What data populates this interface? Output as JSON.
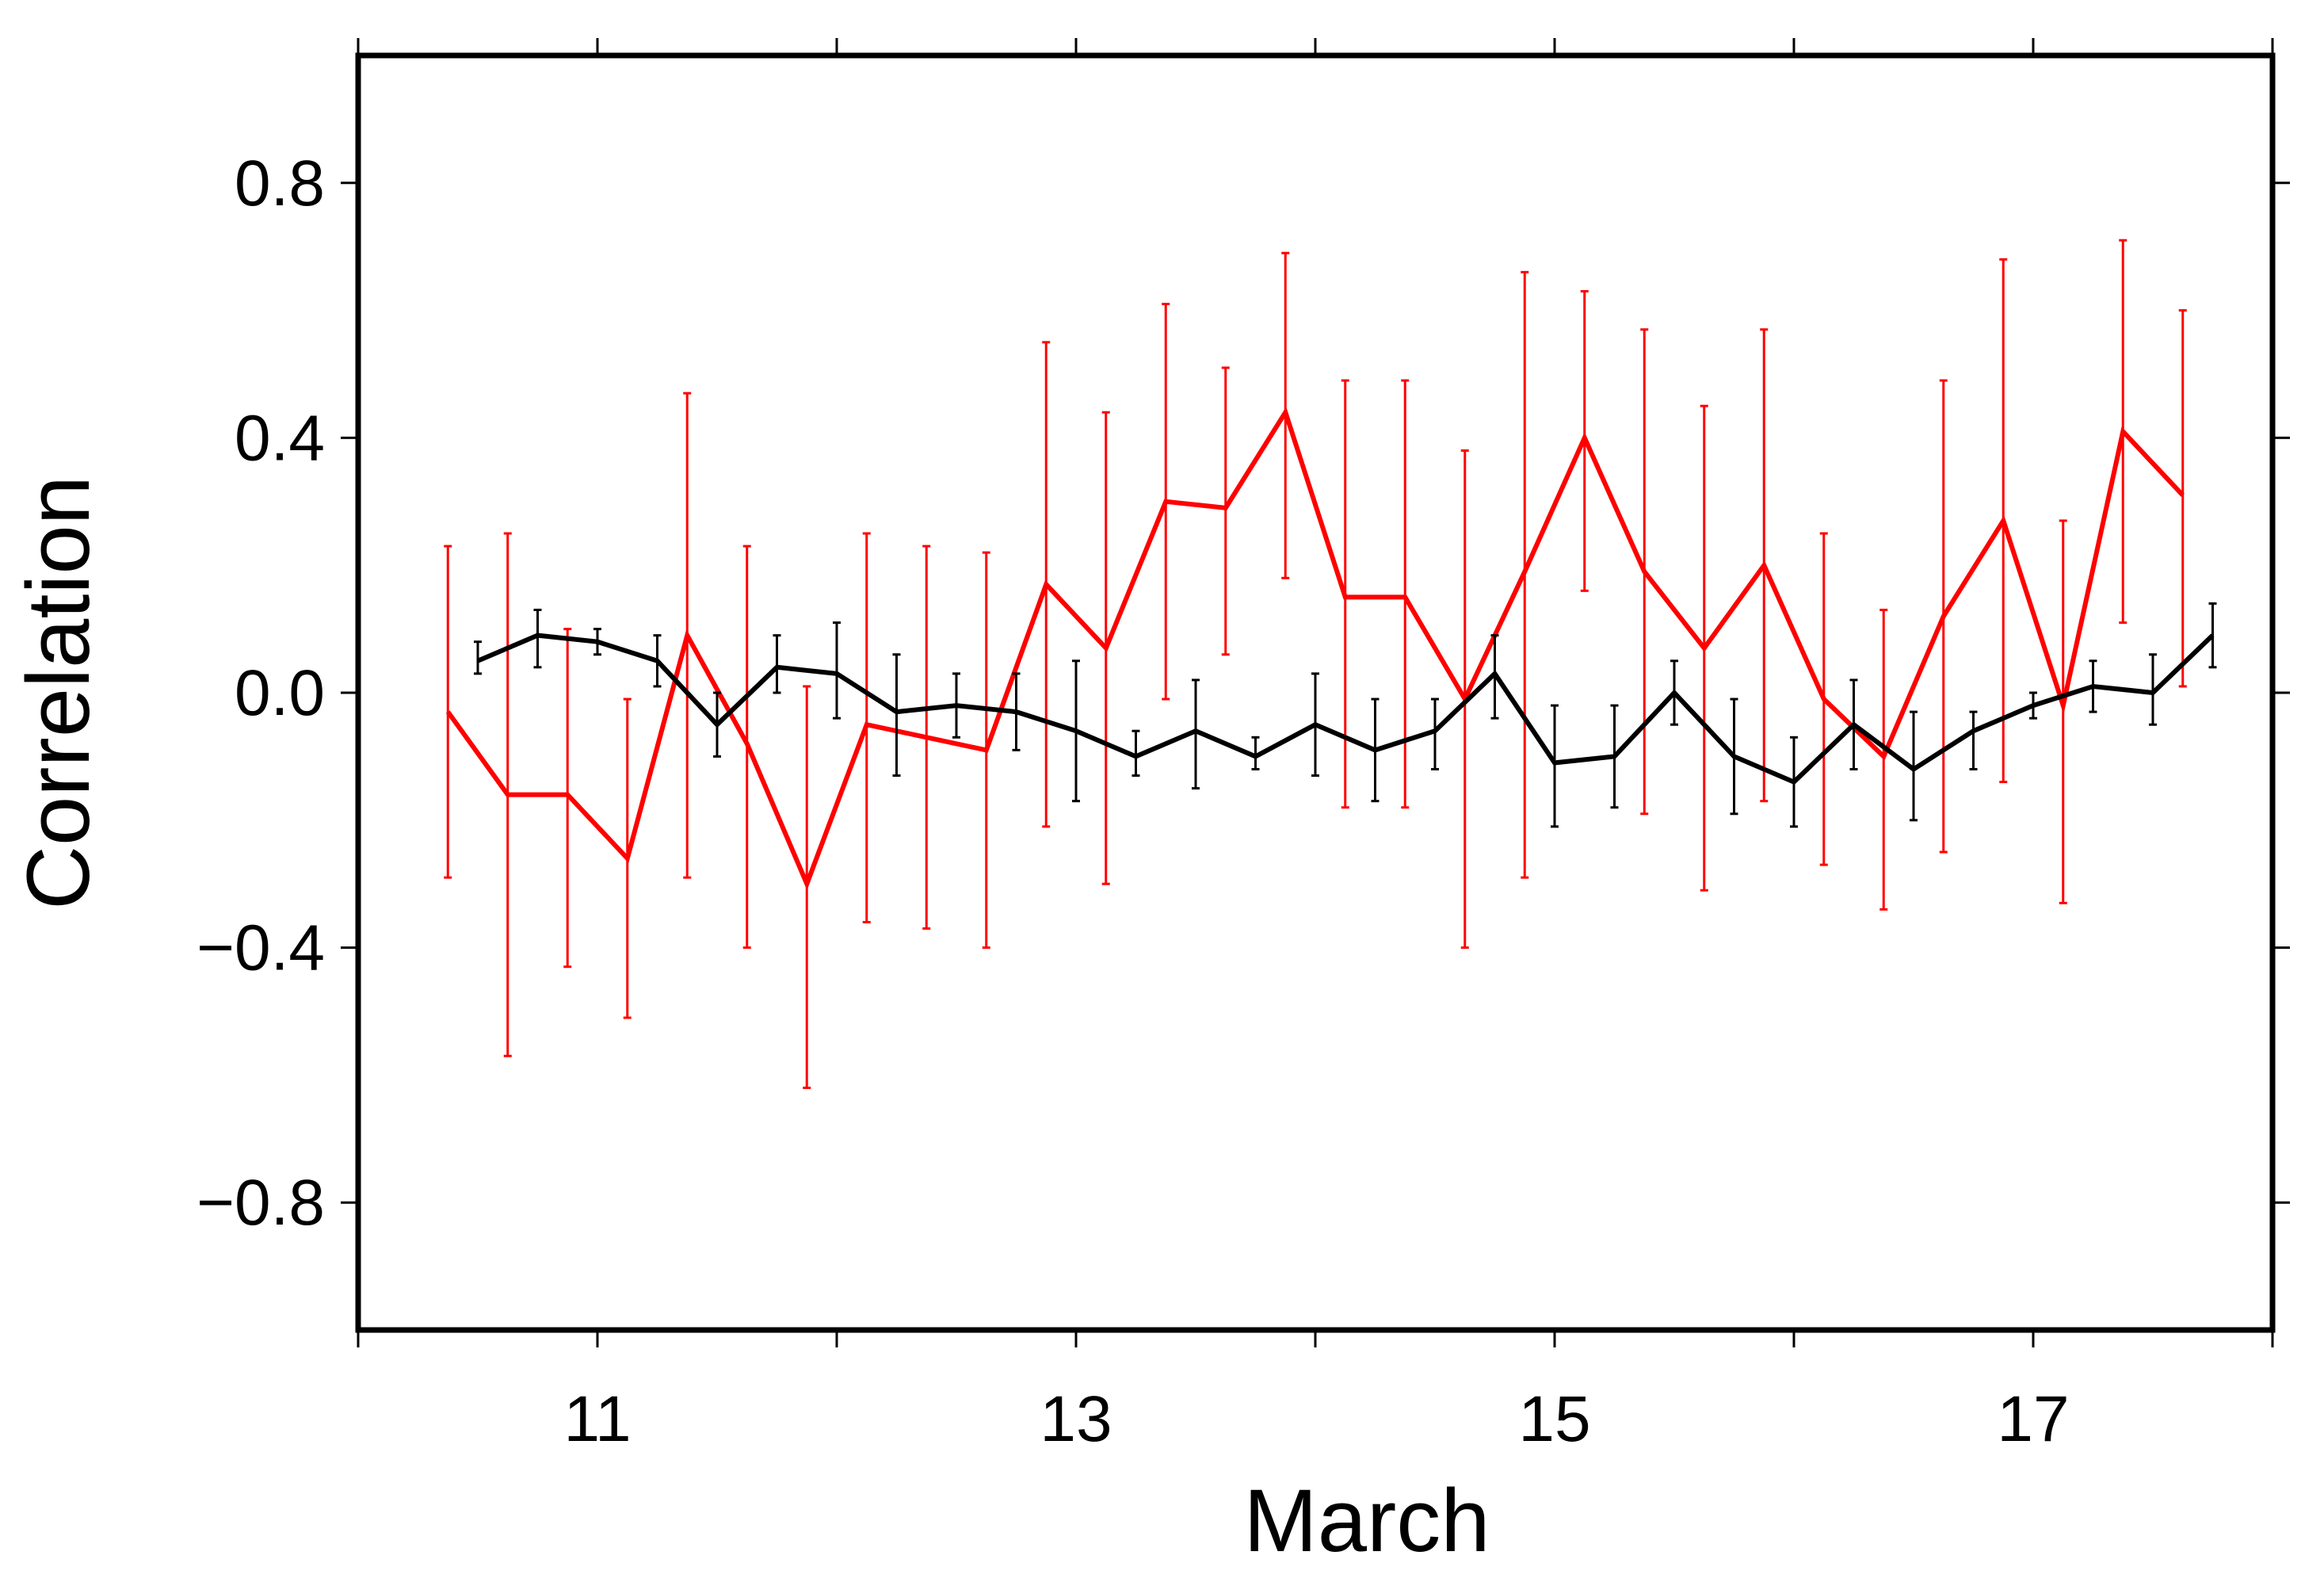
{
  "chart_data": {
    "type": "line",
    "title": "",
    "xlabel": "March",
    "ylabel": "Correlation",
    "xlim": [
      10,
      18
    ],
    "ylim": [
      -1.0,
      1.0
    ],
    "x_ticks": [
      11,
      13,
      15,
      17
    ],
    "x_tick_labels": [
      "11",
      "13",
      "15",
      "17"
    ],
    "y_ticks": [
      0.8,
      0.4,
      0.0,
      -0.4,
      -0.8
    ],
    "y_tick_labels": [
      "0.8",
      "0.4",
      "0.0",
      "−0.4",
      "−0.8"
    ],
    "grid": false,
    "legend": "none",
    "series": [
      {
        "color": "#ff0000",
        "x": [
          10.375,
          10.625,
          10.875,
          11.125,
          11.375,
          11.625,
          11.875,
          12.125,
          12.375,
          12.625,
          12.875,
          13.125,
          13.375,
          13.625,
          13.875,
          14.125,
          14.375,
          14.625,
          14.875,
          15.125,
          15.375,
          15.625,
          15.875,
          16.125,
          16.375,
          16.625,
          16.875,
          17.125,
          17.375,
          17.625
        ],
        "y": [
          -0.03,
          -0.16,
          -0.16,
          -0.26,
          0.09,
          -0.08,
          -0.3,
          -0.05,
          -0.07,
          -0.09,
          0.17,
          0.07,
          0.3,
          0.29,
          0.44,
          0.15,
          0.15,
          -0.01,
          0.19,
          0.4,
          0.19,
          0.07,
          0.2,
          -0.01,
          -0.1,
          0.12,
          0.27,
          -0.02,
          0.41,
          0.31
        ],
        "err_low": [
          -0.29,
          -0.57,
          -0.43,
          -0.51,
          -0.29,
          -0.4,
          -0.62,
          -0.36,
          -0.37,
          -0.4,
          -0.21,
          -0.3,
          -0.01,
          0.06,
          0.18,
          -0.18,
          -0.18,
          -0.4,
          -0.29,
          0.16,
          -0.19,
          -0.31,
          -0.17,
          -0.27,
          -0.34,
          -0.25,
          -0.14,
          -0.33,
          0.11,
          0.01
        ],
        "err_high": [
          0.23,
          0.25,
          0.1,
          -0.01,
          0.47,
          0.23,
          0.01,
          0.25,
          0.23,
          0.22,
          0.55,
          0.44,
          0.61,
          0.51,
          0.69,
          0.49,
          0.49,
          0.38,
          0.66,
          0.63,
          0.57,
          0.45,
          0.57,
          0.25,
          0.13,
          0.49,
          0.68,
          0.27,
          0.71,
          0.6
        ]
      },
      {
        "color": "#000000",
        "x": [
          10.5,
          10.75,
          11.0,
          11.25,
          11.5,
          11.75,
          12.0,
          12.25,
          12.5,
          12.75,
          13.0,
          13.25,
          13.5,
          13.75,
          14.0,
          14.25,
          14.5,
          14.75,
          15.0,
          15.25,
          15.5,
          15.75,
          16.0,
          16.25,
          16.5,
          16.75,
          17.0,
          17.25,
          17.5,
          17.75
        ],
        "y": [
          0.05,
          0.09,
          0.08,
          0.05,
          -0.05,
          0.04,
          0.03,
          -0.03,
          -0.02,
          -0.03,
          -0.06,
          -0.1,
          -0.06,
          -0.1,
          -0.05,
          -0.09,
          -0.06,
          0.03,
          -0.11,
          -0.1,
          -0.0,
          -0.1,
          -0.14,
          -0.05,
          -0.12,
          -0.06,
          -0.02,
          0.01,
          0.0,
          0.09
        ],
        "err_low": [
          0.03,
          0.04,
          0.06,
          0.01,
          -0.1,
          0.0,
          -0.04,
          -0.13,
          -0.07,
          -0.09,
          -0.17,
          -0.13,
          -0.15,
          -0.12,
          -0.13,
          -0.17,
          -0.12,
          -0.04,
          -0.21,
          -0.18,
          -0.05,
          -0.19,
          -0.21,
          -0.12,
          -0.2,
          -0.12,
          -0.04,
          -0.03,
          -0.05,
          0.04
        ],
        "err_high": [
          0.08,
          0.13,
          0.1,
          0.09,
          0.0,
          0.09,
          0.11,
          0.06,
          0.03,
          0.03,
          0.05,
          -0.06,
          0.02,
          -0.07,
          0.03,
          -0.01,
          -0.01,
          0.09,
          -0.02,
          -0.02,
          0.05,
          -0.01,
          -0.07,
          0.02,
          -0.03,
          -0.03,
          0.0,
          0.05,
          0.06,
          0.14
        ]
      }
    ]
  }
}
